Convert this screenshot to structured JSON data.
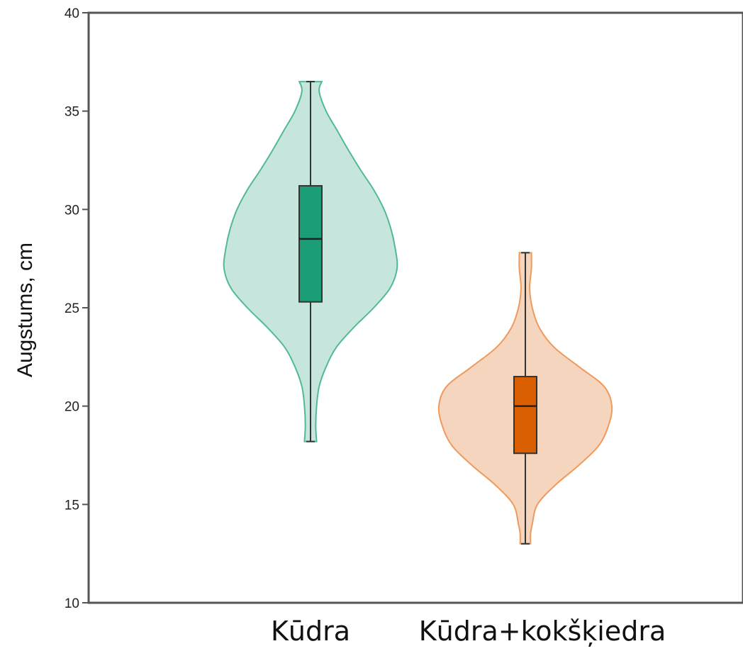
{
  "chart_data": {
    "type": "violin",
    "ylabel": "Augstums, cm",
    "xlabel": "",
    "ylim": [
      10,
      40
    ],
    "yticks": [
      10,
      15,
      20,
      25,
      30,
      35,
      40
    ],
    "grid": false,
    "categories": [
      "Kūdra",
      "Kūdra+kokšķiedra"
    ],
    "series": [
      {
        "category": "Kūdra",
        "fill": "#c6e6dd",
        "stroke": "#52b998",
        "box_color": "#1b9e77",
        "min": 18.2,
        "q1": 25.3,
        "median": 28.5,
        "q3": 31.2,
        "max": 36.5,
        "density": [
          [
            18.2,
            0.07
          ],
          [
            19,
            0.06
          ],
          [
            20,
            0.07
          ],
          [
            21,
            0.1
          ],
          [
            22,
            0.18
          ],
          [
            23,
            0.3
          ],
          [
            24,
            0.5
          ],
          [
            25,
            0.73
          ],
          [
            26,
            0.92
          ],
          [
            27,
            1.0
          ],
          [
            28,
            0.98
          ],
          [
            29,
            0.93
          ],
          [
            30,
            0.85
          ],
          [
            31,
            0.73
          ],
          [
            32,
            0.58
          ],
          [
            33,
            0.44
          ],
          [
            34,
            0.31
          ],
          [
            35,
            0.18
          ],
          [
            36,
            0.1
          ],
          [
            36.5,
            0.13
          ]
        ]
      },
      {
        "category": "Kūdra+kokšķiedra",
        "fill": "#f6d5bf",
        "stroke": "#ee9a5c",
        "box_color": "#d95f02",
        "min": 13.0,
        "q1": 17.6,
        "median": 20.0,
        "q3": 21.5,
        "max": 27.8,
        "density": [
          [
            13,
            0.06
          ],
          [
            13.5,
            0.06
          ],
          [
            14,
            0.08
          ],
          [
            15,
            0.14
          ],
          [
            16,
            0.35
          ],
          [
            17,
            0.62
          ],
          [
            18,
            0.85
          ],
          [
            19,
            0.96
          ],
          [
            20,
            1.0
          ],
          [
            21,
            0.91
          ],
          [
            22,
            0.62
          ],
          [
            23,
            0.33
          ],
          [
            24,
            0.16
          ],
          [
            25,
            0.08
          ],
          [
            26,
            0.05
          ],
          [
            27,
            0.07
          ],
          [
            27.8,
            0.07
          ]
        ]
      }
    ]
  }
}
